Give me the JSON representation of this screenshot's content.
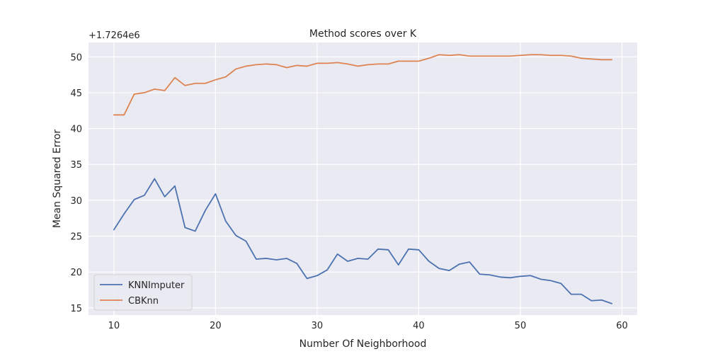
{
  "chart_data": {
    "type": "line",
    "title": "Method scores over K",
    "xlabel": "Number Of Neighborhood",
    "ylabel": "Mean Squared Error",
    "offset_label": "+1.7264e6",
    "xlim": [
      7.5,
      61.5
    ],
    "ylim": [
      14.0,
      52.0
    ],
    "xticks": [
      10,
      20,
      30,
      40,
      50,
      60
    ],
    "yticks": [
      15,
      20,
      25,
      30,
      35,
      40,
      45,
      50
    ],
    "grid": true,
    "legend_position": "lower-left",
    "x": [
      10,
      11,
      12,
      13,
      14,
      15,
      16,
      17,
      18,
      19,
      20,
      21,
      22,
      23,
      24,
      25,
      26,
      27,
      28,
      29,
      30,
      31,
      32,
      33,
      34,
      35,
      36,
      37,
      38,
      39,
      40,
      41,
      42,
      43,
      44,
      45,
      46,
      47,
      48,
      49,
      50,
      51,
      52,
      53,
      54,
      55,
      56,
      57,
      58,
      59
    ],
    "series": [
      {
        "name": "KNNImputer",
        "color": "#4c72b0",
        "values": [
          25.9,
          28.1,
          30.1,
          30.7,
          33.0,
          30.5,
          32.0,
          26.2,
          25.7,
          28.6,
          30.9,
          27.1,
          25.1,
          24.3,
          21.8,
          21.9,
          21.7,
          21.9,
          21.2,
          19.1,
          19.5,
          20.3,
          22.5,
          21.5,
          21.9,
          21.8,
          23.2,
          23.1,
          21.0,
          23.2,
          23.1,
          21.5,
          20.5,
          20.2,
          21.1,
          21.4,
          19.7,
          19.6,
          19.3,
          19.2,
          19.4,
          19.5,
          19.0,
          18.8,
          18.4,
          16.9,
          16.9,
          16.0,
          16.1,
          15.6
        ]
      },
      {
        "name": "CBKnn",
        "color": "#dd8452",
        "values": [
          41.9,
          41.9,
          44.8,
          45.0,
          45.5,
          45.3,
          47.1,
          46.0,
          46.3,
          46.3,
          46.8,
          47.2,
          48.3,
          48.7,
          48.9,
          49.0,
          48.9,
          48.5,
          48.8,
          48.7,
          49.1,
          49.1,
          49.2,
          49.0,
          48.7,
          48.9,
          49.0,
          49.0,
          49.4,
          49.4,
          49.4,
          49.8,
          50.3,
          50.2,
          50.3,
          50.1,
          50.1,
          50.1,
          50.1,
          50.1,
          50.2,
          50.3,
          50.3,
          50.2,
          50.2,
          50.1,
          49.8,
          49.7,
          49.6,
          49.6
        ]
      }
    ]
  }
}
